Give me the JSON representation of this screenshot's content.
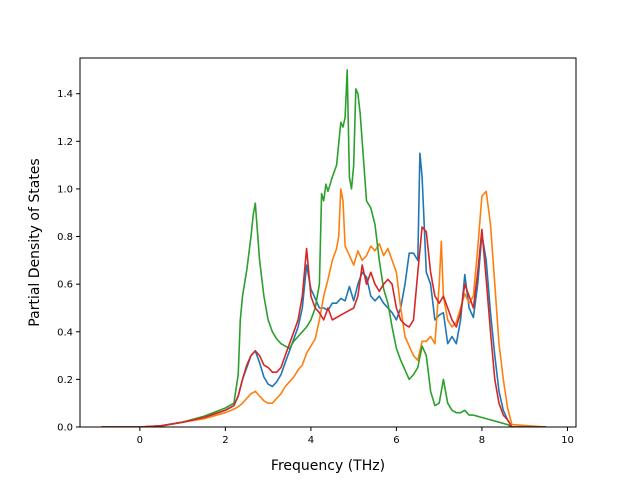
{
  "chart_data": {
    "type": "line",
    "title": "",
    "xlabel": "Frequency (THz)",
    "ylabel": "Partial Density of States",
    "xlim": [
      -1.4,
      10.2
    ],
    "ylim": [
      0.0,
      1.55
    ],
    "xticks": [
      0,
      2,
      4,
      6,
      8,
      10
    ],
    "xtick_labels": [
      "0",
      "2",
      "4",
      "6",
      "8",
      "10"
    ],
    "yticks": [
      0.0,
      0.2,
      0.4,
      0.6,
      0.8,
      1.0,
      1.2,
      1.4
    ],
    "ytick_labels": [
      "0.0",
      "0.2",
      "0.4",
      "0.6",
      "0.8",
      "1.0",
      "1.2",
      "1.4"
    ],
    "grid": false,
    "legend": "none",
    "series": [
      {
        "color": "#1f77b4",
        "x": [
          -0.9,
          0.0,
          0.5,
          1.0,
          1.5,
          2.0,
          2.2,
          2.3,
          2.4,
          2.5,
          2.6,
          2.7,
          2.8,
          2.9,
          3.0,
          3.1,
          3.2,
          3.3,
          3.4,
          3.5,
          3.6,
          3.7,
          3.8,
          3.9,
          4.0,
          4.1,
          4.2,
          4.3,
          4.4,
          4.5,
          4.6,
          4.7,
          4.8,
          4.9,
          5.0,
          5.1,
          5.2,
          5.3,
          5.4,
          5.5,
          5.6,
          5.7,
          5.8,
          5.9,
          6.0,
          6.1,
          6.2,
          6.3,
          6.4,
          6.5,
          6.55,
          6.6,
          6.7,
          6.8,
          6.9,
          7.0,
          7.1,
          7.2,
          7.3,
          7.4,
          7.5,
          7.6,
          7.7,
          7.8,
          7.9,
          8.0,
          8.1,
          8.2,
          8.3,
          8.4,
          8.5,
          8.6,
          8.7,
          9.5
        ],
        "y": [
          0.0,
          0.0,
          0.005,
          0.02,
          0.04,
          0.07,
          0.09,
          0.13,
          0.2,
          0.25,
          0.3,
          0.32,
          0.27,
          0.21,
          0.18,
          0.17,
          0.19,
          0.22,
          0.27,
          0.32,
          0.37,
          0.42,
          0.5,
          0.68,
          0.58,
          0.54,
          0.5,
          0.5,
          0.49,
          0.52,
          0.52,
          0.54,
          0.53,
          0.59,
          0.53,
          0.6,
          0.65,
          0.63,
          0.55,
          0.53,
          0.55,
          0.52,
          0.5,
          0.48,
          0.45,
          0.5,
          0.6,
          0.73,
          0.73,
          0.7,
          1.15,
          1.05,
          0.65,
          0.6,
          0.45,
          0.47,
          0.48,
          0.35,
          0.38,
          0.35,
          0.45,
          0.64,
          0.5,
          0.46,
          0.6,
          0.81,
          0.7,
          0.48,
          0.3,
          0.15,
          0.07,
          0.03,
          0.0,
          0.0
        ]
      },
      {
        "color": "#ff7f0e",
        "x": [
          -0.9,
          0.0,
          0.5,
          1.0,
          1.5,
          2.0,
          2.2,
          2.3,
          2.4,
          2.5,
          2.6,
          2.7,
          2.8,
          2.9,
          3.0,
          3.1,
          3.2,
          3.3,
          3.4,
          3.5,
          3.6,
          3.7,
          3.8,
          3.9,
          4.0,
          4.1,
          4.2,
          4.3,
          4.4,
          4.5,
          4.6,
          4.65,
          4.7,
          4.75,
          4.8,
          4.9,
          5.0,
          5.1,
          5.2,
          5.3,
          5.4,
          5.5,
          5.6,
          5.7,
          5.8,
          5.9,
          6.0,
          6.1,
          6.2,
          6.3,
          6.4,
          6.5,
          6.6,
          6.7,
          6.8,
          6.9,
          7.0,
          7.05,
          7.1,
          7.2,
          7.3,
          7.4,
          7.5,
          7.6,
          7.7,
          7.8,
          7.9,
          8.0,
          8.1,
          8.2,
          8.3,
          8.4,
          8.5,
          8.6,
          8.7,
          9.5
        ],
        "y": [
          0.0,
          0.0,
          0.005,
          0.02,
          0.035,
          0.06,
          0.075,
          0.085,
          0.1,
          0.12,
          0.14,
          0.15,
          0.13,
          0.11,
          0.1,
          0.1,
          0.12,
          0.14,
          0.17,
          0.19,
          0.21,
          0.24,
          0.26,
          0.31,
          0.34,
          0.37,
          0.45,
          0.55,
          0.62,
          0.7,
          0.75,
          0.8,
          1.0,
          0.95,
          0.76,
          0.72,
          0.68,
          0.74,
          0.7,
          0.72,
          0.76,
          0.74,
          0.77,
          0.72,
          0.75,
          0.7,
          0.65,
          0.5,
          0.38,
          0.34,
          0.3,
          0.28,
          0.36,
          0.36,
          0.38,
          0.35,
          0.6,
          0.78,
          0.55,
          0.45,
          0.42,
          0.44,
          0.5,
          0.56,
          0.52,
          0.55,
          0.75,
          0.97,
          0.99,
          0.85,
          0.6,
          0.35,
          0.2,
          0.08,
          0.01,
          0.0
        ]
      },
      {
        "color": "#2ca02c",
        "x": [
          -0.9,
          0.0,
          0.5,
          1.0,
          1.5,
          2.0,
          2.2,
          2.3,
          2.35,
          2.4,
          2.5,
          2.6,
          2.65,
          2.7,
          2.8,
          2.9,
          3.0,
          3.1,
          3.2,
          3.3,
          3.4,
          3.5,
          3.6,
          3.7,
          3.8,
          3.9,
          4.0,
          4.1,
          4.2,
          4.25,
          4.3,
          4.35,
          4.4,
          4.5,
          4.6,
          4.7,
          4.75,
          4.8,
          4.85,
          4.9,
          4.95,
          5.0,
          5.05,
          5.1,
          5.15,
          5.2,
          5.3,
          5.4,
          5.5,
          5.6,
          5.7,
          5.8,
          5.9,
          6.0,
          6.1,
          6.2,
          6.3,
          6.4,
          6.5,
          6.6,
          6.7,
          6.8,
          6.9,
          7.0,
          7.1,
          7.2,
          7.3,
          7.4,
          7.5,
          7.6,
          7.7,
          7.8,
          7.9,
          8.0,
          8.2,
          8.4,
          8.6,
          8.7,
          9.5
        ],
        "y": [
          0.0,
          0.0,
          0.005,
          0.02,
          0.045,
          0.08,
          0.1,
          0.22,
          0.45,
          0.55,
          0.66,
          0.8,
          0.89,
          0.94,
          0.7,
          0.55,
          0.45,
          0.4,
          0.37,
          0.35,
          0.34,
          0.33,
          0.36,
          0.38,
          0.4,
          0.42,
          0.45,
          0.5,
          0.6,
          0.98,
          0.95,
          1.02,
          0.99,
          1.05,
          1.1,
          1.28,
          1.26,
          1.3,
          1.5,
          1.05,
          1.0,
          1.1,
          1.42,
          1.4,
          1.32,
          1.2,
          0.95,
          0.92,
          0.85,
          0.7,
          0.58,
          0.52,
          0.42,
          0.33,
          0.28,
          0.24,
          0.2,
          0.22,
          0.25,
          0.34,
          0.3,
          0.15,
          0.09,
          0.1,
          0.2,
          0.1,
          0.07,
          0.06,
          0.06,
          0.07,
          0.05,
          0.05,
          0.045,
          0.04,
          0.03,
          0.02,
          0.01,
          0.0,
          0.0
        ]
      },
      {
        "color": "#d62728",
        "x": [
          -0.9,
          0.0,
          0.5,
          1.0,
          1.5,
          2.0,
          2.2,
          2.3,
          2.4,
          2.5,
          2.6,
          2.7,
          2.8,
          2.9,
          3.0,
          3.1,
          3.2,
          3.3,
          3.4,
          3.5,
          3.6,
          3.7,
          3.8,
          3.9,
          4.0,
          4.1,
          4.2,
          4.3,
          4.4,
          4.5,
          4.6,
          4.7,
          4.8,
          4.9,
          5.0,
          5.1,
          5.2,
          5.3,
          5.4,
          5.5,
          5.6,
          5.7,
          5.8,
          5.9,
          6.0,
          6.1,
          6.2,
          6.3,
          6.4,
          6.5,
          6.6,
          6.7,
          6.8,
          6.9,
          7.0,
          7.1,
          7.2,
          7.3,
          7.4,
          7.5,
          7.6,
          7.7,
          7.8,
          7.9,
          8.0,
          8.1,
          8.2,
          8.3,
          8.4,
          8.5,
          8.6,
          8.7,
          9.5
        ],
        "y": [
          0.0,
          0.0,
          0.005,
          0.02,
          0.04,
          0.07,
          0.09,
          0.13,
          0.2,
          0.26,
          0.3,
          0.32,
          0.3,
          0.26,
          0.25,
          0.23,
          0.23,
          0.25,
          0.3,
          0.35,
          0.4,
          0.45,
          0.55,
          0.75,
          0.55,
          0.5,
          0.48,
          0.45,
          0.5,
          0.45,
          0.46,
          0.47,
          0.48,
          0.49,
          0.5,
          0.55,
          0.68,
          0.6,
          0.65,
          0.6,
          0.57,
          0.6,
          0.62,
          0.6,
          0.5,
          0.45,
          0.43,
          0.42,
          0.45,
          0.65,
          0.84,
          0.82,
          0.65,
          0.55,
          0.52,
          0.55,
          0.5,
          0.45,
          0.42,
          0.48,
          0.6,
          0.55,
          0.5,
          0.65,
          0.83,
          0.62,
          0.4,
          0.2,
          0.1,
          0.05,
          0.03,
          0.0,
          0.0
        ]
      }
    ]
  }
}
